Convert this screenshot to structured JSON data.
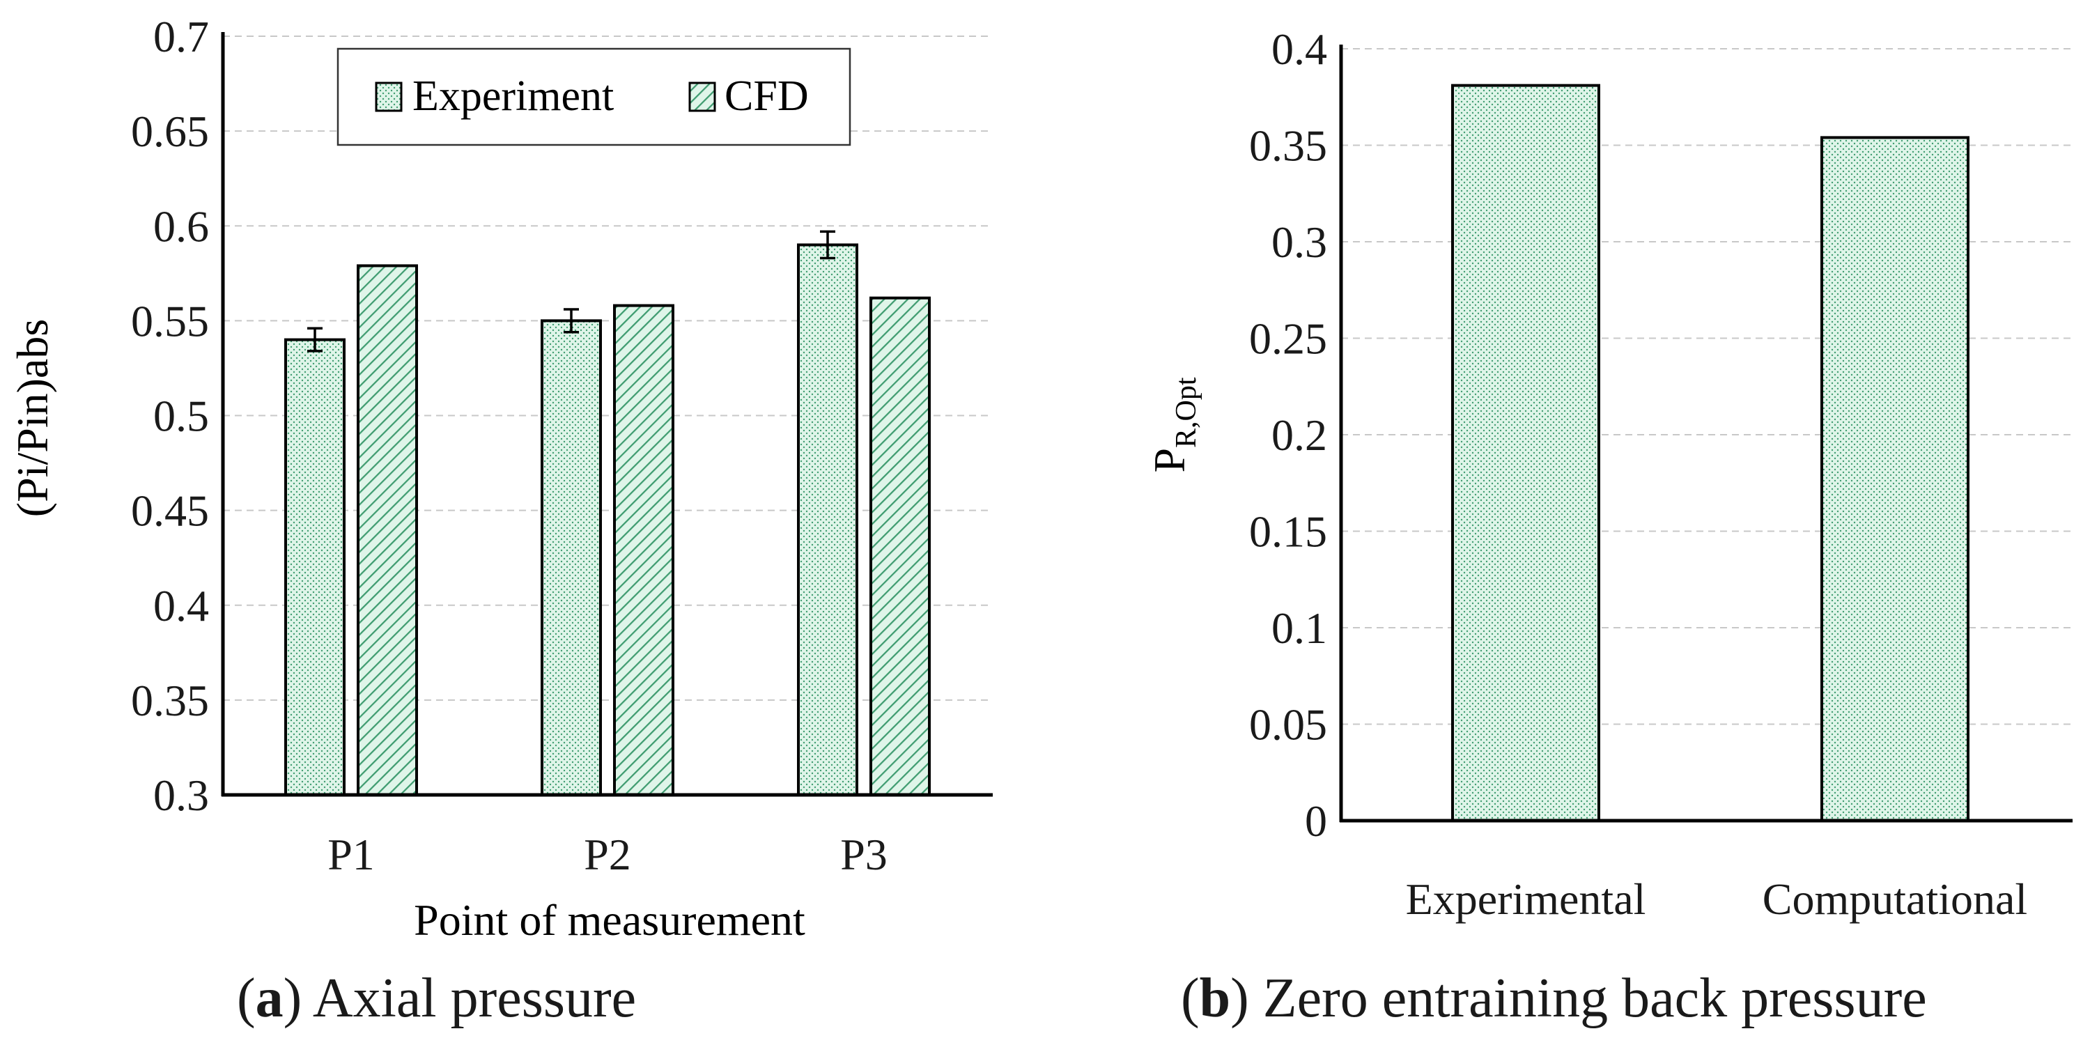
{
  "colors": {
    "fill": "#dff5e9",
    "pattern_ink": "#3f9c70",
    "grid": "#c8c8c8",
    "axis": "#000000",
    "text": "#1a1a1a"
  },
  "captions": {
    "a": {
      "letter": "a",
      "text": "Axial pressure"
    },
    "b": {
      "letter": "b",
      "text": "Zero entraining back pressure"
    }
  },
  "chart_data": [
    {
      "id": "a",
      "type": "bar",
      "title": "",
      "xlabel": "Point of measurement",
      "ylabel": "(Pi/Pin)abs",
      "categories": [
        "P1",
        "P2",
        "P3"
      ],
      "ylim": [
        0.3,
        0.7
      ],
      "yticks": [
        0.3,
        0.35,
        0.4,
        0.45,
        0.5,
        0.55,
        0.6,
        0.65,
        0.7
      ],
      "ytick_labels": [
        "0.3",
        "0.35",
        "0.4",
        "0.45",
        "0.5",
        "0.55",
        "0.6",
        "0.65",
        "0.7"
      ],
      "grid": true,
      "legend_position": "top-center",
      "series": [
        {
          "name": "Experiment",
          "pattern": "dots",
          "values": [
            0.54,
            0.55,
            0.59
          ],
          "error": [
            0.006,
            0.006,
            0.007
          ]
        },
        {
          "name": "CFD",
          "pattern": "hatch",
          "values": [
            0.579,
            0.558,
            0.562
          ]
        }
      ]
    },
    {
      "id": "b",
      "type": "bar",
      "title": "",
      "xlabel": "",
      "ylabel": "P",
      "ylabel_subscript": "R,Opt",
      "categories": [
        "Experimental",
        "Computational"
      ],
      "ylim": [
        0,
        0.4
      ],
      "yticks": [
        0,
        0.05,
        0.1,
        0.15,
        0.2,
        0.25,
        0.3,
        0.35,
        0.4
      ],
      "ytick_labels": [
        "0",
        "0.05",
        "0.1",
        "0.15",
        "0.2",
        "0.25",
        "0.3",
        "0.35",
        "0.4"
      ],
      "grid": true,
      "series": [
        {
          "name": "P_R,Opt",
          "pattern": "dots",
          "values": [
            0.381,
            0.354
          ]
        }
      ]
    }
  ]
}
